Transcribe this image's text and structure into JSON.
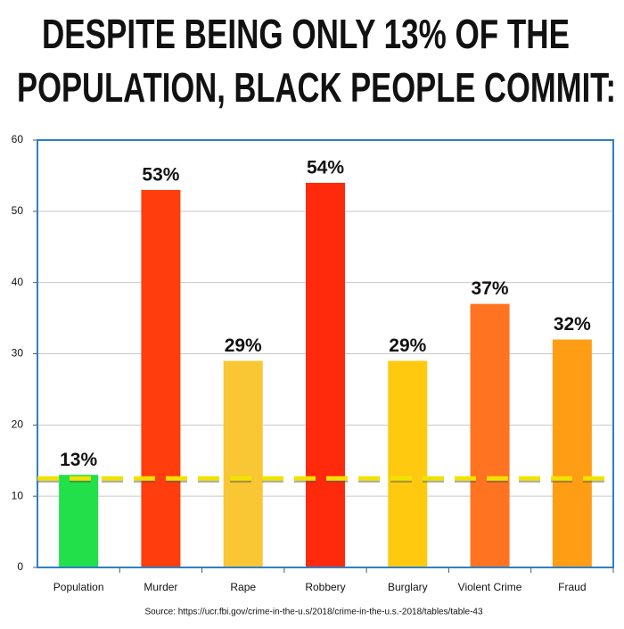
{
  "chart_data": {
    "type": "bar",
    "title_lines": [
      "DESPITE BEING ONLY 13% OF THE",
      "POPULATION, BLACK PEOPLE COMMIT:"
    ],
    "categories": [
      "Population",
      "Murder",
      "Rape",
      "Robbery",
      "Burglary",
      "Violent Crime",
      "Fraud"
    ],
    "values": [
      13,
      53,
      29,
      54,
      29,
      37,
      32
    ],
    "value_labels": [
      "13%",
      "53%",
      "29%",
      "54%",
      "29%",
      "37%",
      "32%"
    ],
    "colors": [
      "#22e04a",
      "#ff3d0d",
      "#f9c634",
      "#ff2a0c",
      "#ffc910",
      "#ff7321",
      "#ff9d14"
    ],
    "reference_line": 12.5,
    "reference_color": "#f2e200",
    "ylim": [
      0,
      60
    ],
    "yticks": [
      0,
      10,
      20,
      30,
      40,
      50,
      60
    ],
    "grid": true,
    "source": "Source: https://ucr.fbi.gov/crime-in-the-u.s/2018/crime-in-the-u.s.-2018/tables/table-43"
  }
}
